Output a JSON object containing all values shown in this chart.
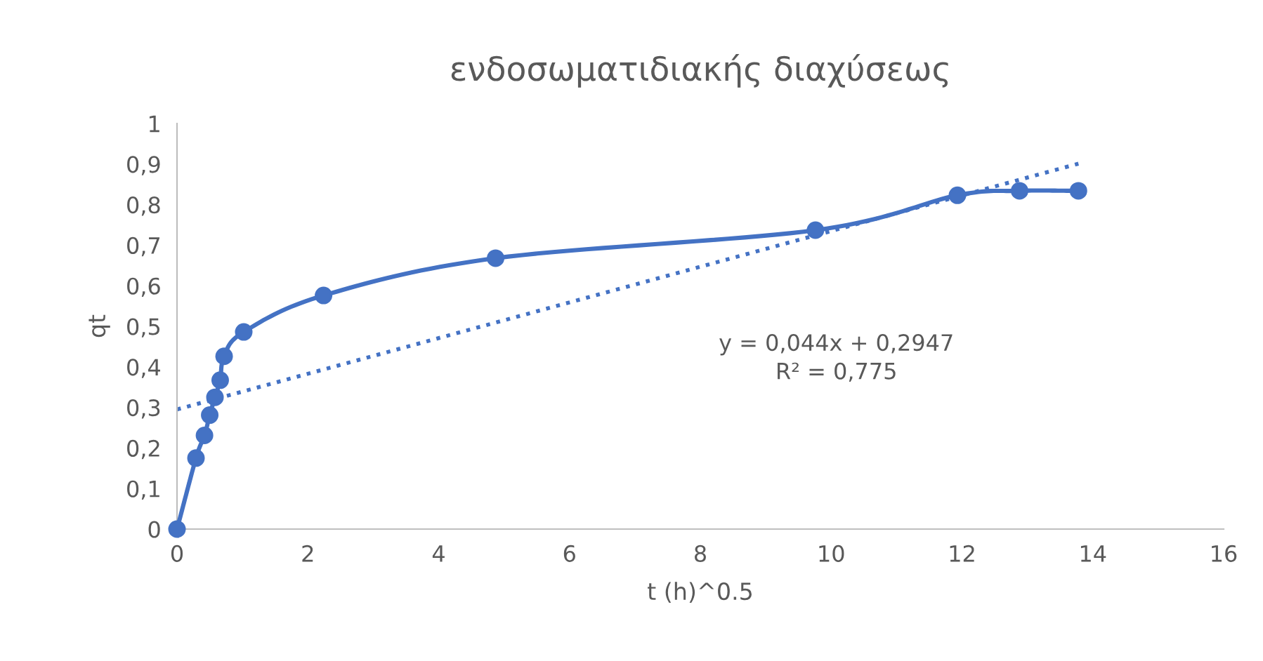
{
  "chart_data": {
    "type": "line",
    "title": "ενδοσωματιδιακής διαχύσεως",
    "xlabel": "t (h)^0.5",
    "ylabel": "qt",
    "series": [
      {
        "color": "#4472c4",
        "marker": "circle",
        "line_style": "solid",
        "x": [
          0,
          0.29,
          0.42,
          0.5,
          0.58,
          0.66,
          0.72,
          1.02,
          2.24,
          4.87,
          9.76,
          11.93,
          12.88,
          13.78
        ],
        "values": [
          0,
          0.175,
          0.231,
          0.281,
          0.325,
          0.367,
          0.426,
          0.486,
          0.576,
          0.668,
          0.737,
          0.823,
          0.834,
          0.834
        ]
      },
      {
        "type": "line",
        "color": "#4472c4",
        "marker": "none",
        "line_style": "dotted",
        "x": [
          0,
          13.78
        ],
        "values": [
          0.295,
          0.901
        ]
      }
    ],
    "xlim": [
      0,
      16
    ],
    "xticks": [
      0,
      2,
      4,
      6,
      8,
      10,
      12,
      14,
      16
    ],
    "ylim": [
      0,
      1
    ],
    "yticks": [
      0,
      {
        "value": 0.1,
        "label": "0,1"
      },
      {
        "value": 0.2,
        "label": "0,2"
      },
      {
        "value": 0.3,
        "label": "0,3"
      },
      {
        "value": 0.4,
        "label": "0,4"
      },
      {
        "value": 0.5,
        "label": "0,5"
      },
      {
        "value": 0.6,
        "label": "0,6"
      },
      {
        "value": 0.7,
        "label": "0,7"
      },
      {
        "value": 0.8,
        "label": "0,8"
      },
      {
        "value": 0.9,
        "label": "0,9"
      },
      1
    ],
    "annotations": [
      "y = 0,044x + 0,2947\nR² = 0,775"
    ],
    "grid": false,
    "legend": false
  }
}
